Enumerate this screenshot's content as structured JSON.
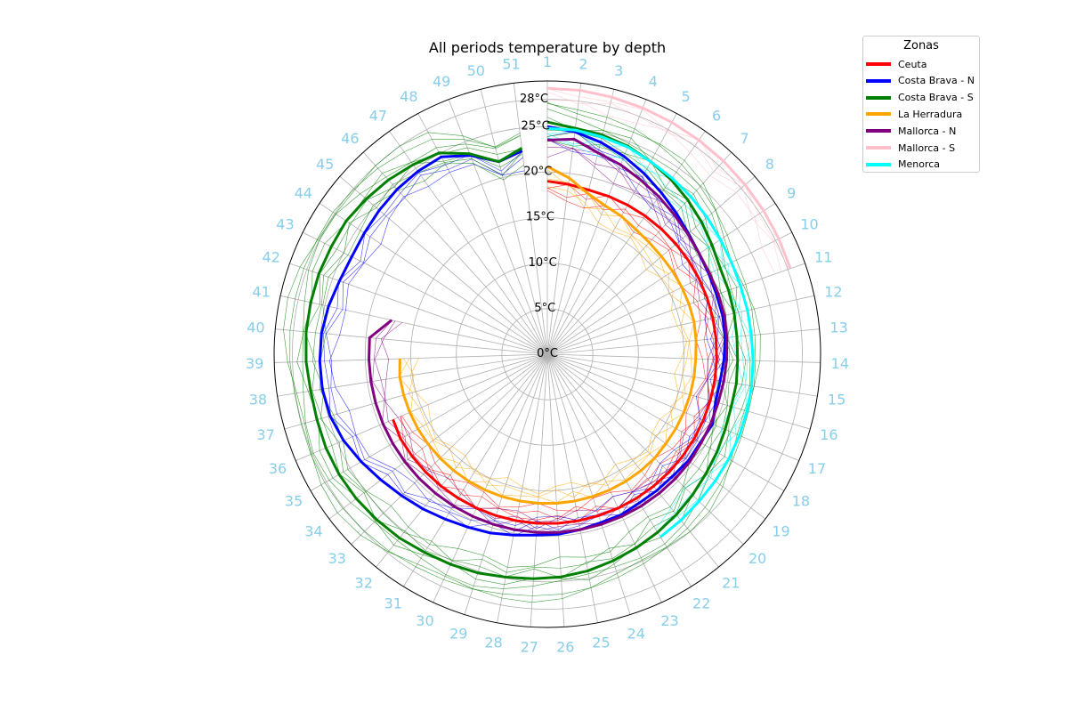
{
  "chart_data": {
    "type": "polar-line",
    "title": "All periods temperature by depth",
    "theta_labels": [
      "1",
      "2",
      "3",
      "4",
      "5",
      "6",
      "7",
      "8",
      "9",
      "10",
      "11",
      "12",
      "13",
      "14",
      "15",
      "16",
      "17",
      "18",
      "19",
      "20",
      "21",
      "22",
      "23",
      "24",
      "25",
      "26",
      "27",
      "28",
      "29",
      "30",
      "31",
      "32",
      "33",
      "34",
      "35",
      "36",
      "37",
      "38",
      "39",
      "40",
      "41",
      "42",
      "43",
      "44",
      "45",
      "46",
      "47",
      "48",
      "49",
      "50",
      "51"
    ],
    "r_ticks": [
      0,
      5,
      10,
      15,
      20,
      25,
      28
    ],
    "r_tick_labels": [
      "0°C",
      "5°C",
      "10°C",
      "15°C",
      "20°C",
      "25°C",
      "28°C"
    ],
    "rlim": [
      0,
      30
    ],
    "theta_direction": "clockwise",
    "theta_zero": "top",
    "tick_label_color": "#87ceeb",
    "grid": true,
    "legend": {
      "title": "Zonas",
      "position": "upper-right",
      "entries": [
        {
          "label": "Ceuta",
          "color": "#ff0000"
        },
        {
          "label": "Costa Brava - N",
          "color": "#0000ff"
        },
        {
          "label": "Costa Brava - S",
          "color": "#008000"
        },
        {
          "label": "La Herradura",
          "color": "#ffa500"
        },
        {
          "label": "Mallorca - N",
          "color": "#800080"
        },
        {
          "label": "Mallorca - S",
          "color": "#ffc0cb"
        },
        {
          "label": "Menorca",
          "color": "#00ffff"
        }
      ]
    },
    "series": [
      {
        "name": "Ceuta",
        "color": "#ff0000",
        "start_week": 1,
        "values": [
          19.0,
          18.8,
          18.6,
          18.6,
          18.6,
          18.6,
          18.6,
          18.6,
          18.6,
          18.6,
          18.6,
          18.6,
          18.6,
          18.6,
          18.6,
          18.6,
          18.6,
          18.6,
          18.6,
          18.6,
          18.6,
          18.6,
          18.6,
          18.6,
          18.6,
          18.6,
          18.6,
          18.6,
          18.6,
          18.6,
          18.6,
          18.6,
          18.6,
          18.6,
          18.6,
          18.4
        ]
      },
      {
        "name": "Costa Brava - N",
        "color": "#0000ff",
        "start_week": 1,
        "values": [
          25.0,
          24.6,
          24.0,
          23.3,
          22.5,
          21.7,
          21.0,
          20.4,
          20.0,
          19.8,
          19.7,
          19.7,
          19.6,
          19.4,
          19.2,
          19.2,
          19.7,
          19.4,
          19.4,
          19.2,
          19.2,
          19.2,
          19.4,
          19.4,
          19.6,
          19.8,
          19.9,
          20.2,
          20.6,
          20.9,
          21.3,
          21.8,
          22.3,
          22.9,
          23.6,
          24.3,
          24.8,
          25.0,
          25.0,
          24.9,
          24.6,
          24.2,
          24.0,
          24.1,
          24.3,
          24.5,
          24.6,
          24.6,
          23.4,
          21.8,
          22.5
        ]
      },
      {
        "name": "Costa Brava - S",
        "color": "#008000",
        "start_week": 1,
        "values": [
          25.5,
          25.0,
          24.8,
          24.5,
          24.0,
          23.5,
          22.9,
          22.3,
          21.7,
          21.2,
          21.1,
          21.0,
          20.9,
          20.9,
          21.0,
          21.0,
          21.2,
          21.5,
          21.8,
          22.2,
          22.6,
          23.0,
          23.4,
          23.8,
          24.2,
          24.5,
          24.7,
          24.9,
          25.2,
          25.4,
          25.6,
          25.9,
          26.1,
          26.3,
          26.4,
          26.4,
          26.3,
          26.3,
          26.5,
          26.6,
          26.6,
          26.6,
          26.5,
          26.5,
          26.2,
          25.9,
          25.5,
          25.1,
          23.6,
          21.8,
          22.8
        ]
      },
      {
        "name": "La Herradura",
        "color": "#ffa500",
        "start_week": 1,
        "values": [
          20.6,
          19.5,
          18.2,
          17.5,
          17.2,
          16.8,
          16.6,
          16.5,
          16.5,
          16.5,
          16.5,
          16.5,
          16.4,
          16.3,
          16.3,
          16.3,
          16.3,
          16.3,
          16.3,
          16.4,
          16.4,
          16.4,
          16.4,
          16.4,
          16.4,
          16.4,
          16.4,
          16.4,
          16.4,
          16.4,
          16.4,
          16.4,
          16.4,
          16.4,
          16.4,
          16.4,
          16.4,
          16.4,
          16.2
        ]
      },
      {
        "name": "Mallorca - N",
        "color": "#800080",
        "start_week": 1,
        "values": [
          23.5,
          23.8,
          22.8,
          22.3,
          21.7,
          21.2,
          20.7,
          20.3,
          20.0,
          19.9,
          19.9,
          19.9,
          19.8,
          19.7,
          19.6,
          19.5,
          19.5,
          19.5,
          19.6,
          19.6,
          19.6,
          19.6,
          19.6,
          19.6,
          19.6,
          19.6,
          19.6,
          19.6,
          19.6,
          19.6,
          19.6,
          19.6,
          19.6,
          19.6,
          19.6,
          19.6,
          19.6,
          19.6,
          19.6,
          19.6,
          17.5
        ]
      },
      {
        "name": "Mallorca - S",
        "color": "#ffc0cb",
        "start_week": 1,
        "values": [
          29.2,
          29.2,
          29.1,
          29.0,
          28.9,
          28.8,
          28.7,
          28.6,
          28.5,
          28.4,
          28.3
        ]
      },
      {
        "name": "Menorca",
        "color": "#00ffff",
        "start_week": 1,
        "values": [
          24.8,
          24.8,
          24.6,
          24.4,
          24.0,
          23.7,
          23.4,
          23.1,
          22.8,
          22.6,
          22.5,
          22.5,
          22.5,
          22.6,
          22.7,
          22.8,
          22.9,
          23.0,
          23.1,
          23.2,
          23.4,
          23.6
        ]
      }
    ]
  }
}
